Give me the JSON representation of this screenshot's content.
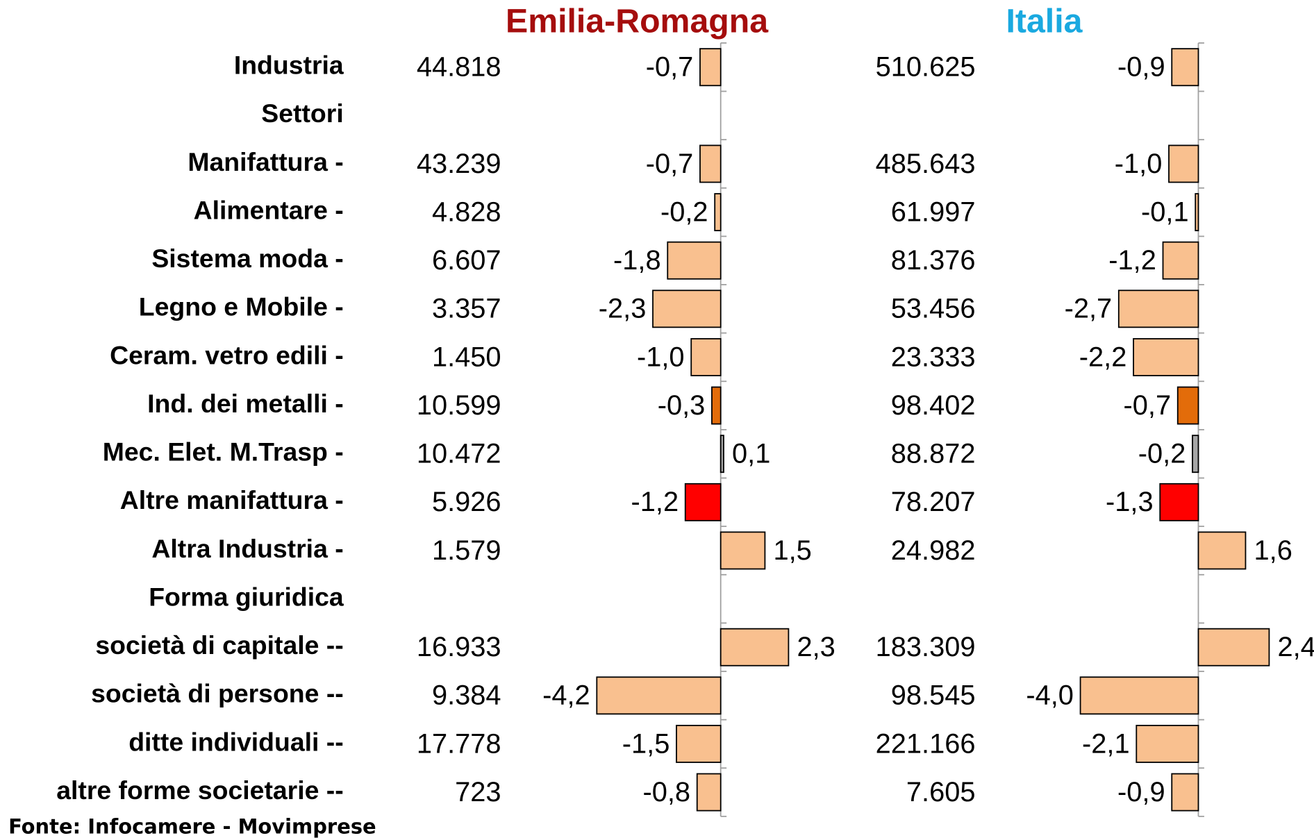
{
  "panels": [
    {
      "title": "Emilia-Romagna",
      "title_color": "#a50d0d"
    },
    {
      "title": "Italia",
      "title_color": "#1aa9e0"
    }
  ],
  "rows": [
    {
      "label": "Industria",
      "color": "#f9c08f",
      "er_count": "44.818",
      "er_change": -0.7,
      "er_change_label": "-0,7",
      "it_count": "510.625",
      "it_change": -0.9,
      "it_change_label": "-0,9"
    },
    {
      "label": "Settori"
    },
    {
      "label": "Manifattura  -",
      "color": "#f9c08f",
      "er_count": "43.239",
      "er_change": -0.7,
      "er_change_label": "-0,7",
      "it_count": "485.643",
      "it_change": -1.0,
      "it_change_label": "-1,0"
    },
    {
      "label": "Alimentare  -",
      "color": "#f9c08f",
      "er_count": "4.828",
      "er_change": -0.2,
      "er_change_label": "-0,2",
      "it_count": "61.997",
      "it_change": -0.1,
      "it_change_label": "-0,1"
    },
    {
      "label": "Sistema moda  -",
      "color": "#f9c08f",
      "er_count": "6.607",
      "er_change": -1.8,
      "er_change_label": "-1,8",
      "it_count": "81.376",
      "it_change": -1.2,
      "it_change_label": "-1,2"
    },
    {
      "label": "Legno e Mobile  -",
      "color": "#f9c08f",
      "er_count": "3.357",
      "er_change": -2.3,
      "er_change_label": "-2,3",
      "it_count": "53.456",
      "it_change": -2.7,
      "it_change_label": "-2,7"
    },
    {
      "label": "Ceram. vetro edili  -",
      "color": "#f9c08f",
      "er_count": "1.450",
      "er_change": -1.0,
      "er_change_label": "-1,0",
      "it_count": "23.333",
      "it_change": -2.2,
      "it_change_label": "-2,2"
    },
    {
      "label": "Ind. dei metalli  -",
      "color": "#e36c0a",
      "er_count": "10.599",
      "er_change": -0.3,
      "er_change_label": "-0,3",
      "it_count": "98.402",
      "it_change": -0.7,
      "it_change_label": "-0,7"
    },
    {
      "label": "Mec. Elet. M.Trasp  -",
      "color": "#a6a6a6",
      "er_count": "10.472",
      "er_change": 0.1,
      "er_change_label": "0,1",
      "it_count": "88.872",
      "it_change": -0.2,
      "it_change_label": "-0,2"
    },
    {
      "label": "Altre manifattura  -",
      "color": "#ff0000",
      "er_count": "5.926",
      "er_change": -1.2,
      "er_change_label": "-1,2",
      "it_count": "78.207",
      "it_change": -1.3,
      "it_change_label": "-1,3"
    },
    {
      "label": "Altra Industria -",
      "color": "#f9c08f",
      "er_count": "1.579",
      "er_change": 1.5,
      "er_change_label": "1,5",
      "it_count": "24.982",
      "it_change": 1.6,
      "it_change_label": "1,6"
    },
    {
      "label": "Forma giuridica"
    },
    {
      "label": "società di capitale --",
      "color": "#f9c08f",
      "er_count": "16.933",
      "er_change": 2.3,
      "er_change_label": "2,3",
      "it_count": "183.309",
      "it_change": 2.4,
      "it_change_label": "2,4"
    },
    {
      "label": "società di persone --",
      "color": "#f9c08f",
      "er_count": "9.384",
      "er_change": -4.2,
      "er_change_label": "-4,2",
      "it_count": "98.545",
      "it_change": -4.0,
      "it_change_label": "-4,0"
    },
    {
      "label": "ditte individuali --",
      "color": "#f9c08f",
      "er_count": "17.778",
      "er_change": -1.5,
      "er_change_label": "-1,5",
      "it_count": "221.166",
      "it_change": -2.1,
      "it_change_label": "-2,1"
    },
    {
      "label": "altre forme societarie --",
      "color": "#f9c08f",
      "er_count": "723",
      "er_change": -0.8,
      "er_change_label": "-0,8",
      "it_count": "7.605",
      "it_change": -0.9,
      "it_change_label": "-0,9"
    }
  ],
  "source": "Fonte: Infocamere - Movimprese"
}
